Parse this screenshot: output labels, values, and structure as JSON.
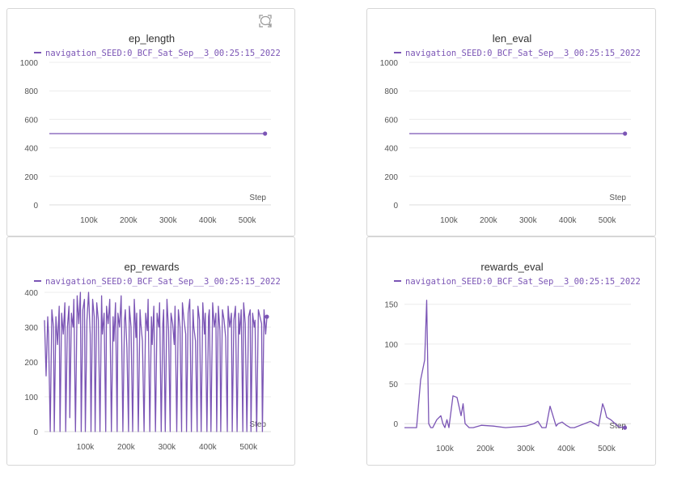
{
  "colors": {
    "series": "#7b55b5",
    "grid": "#ececec",
    "tick_text": "#555555",
    "title_text": "#333333",
    "axis": "#dddddd"
  },
  "panel_tools": [
    "fullscreen-icon",
    "comment-icon"
  ],
  "chart_data": [
    {
      "type": "line",
      "title": "ep_length",
      "legend": "navigation_SEED:0_BCF_Sat_Sep__3_00:25:15_2022",
      "xlabel": "Step",
      "ylabel": "",
      "xlim": [
        0,
        560000
      ],
      "ylim": [
        0,
        1000
      ],
      "xticks": [
        100000,
        200000,
        300000,
        400000,
        500000
      ],
      "xtick_labels": [
        "100k",
        "200k",
        "300k",
        "400k",
        "500k"
      ],
      "yticks": [
        0,
        200,
        400,
        600,
        800,
        1000
      ],
      "ytick_labels": [
        "0",
        "200",
        "400",
        "600",
        "800",
        "1000"
      ],
      "series": [
        {
          "name": "navigation_SEED:0_BCF_Sat_Sep__3_00:25:15_2022",
          "x": [
            0,
            545000
          ],
          "y": [
            500,
            500
          ],
          "end_marker": true
        }
      ]
    },
    {
      "type": "line",
      "title": "len_eval",
      "legend": "navigation_SEED:0_BCF_Sat_Sep__3_00:25:15_2022",
      "xlabel": "Step",
      "ylabel": "",
      "xlim": [
        0,
        560000
      ],
      "ylim": [
        0,
        1000
      ],
      "xticks": [
        100000,
        200000,
        300000,
        400000,
        500000
      ],
      "xtick_labels": [
        "100k",
        "200k",
        "300k",
        "400k",
        "500k"
      ],
      "yticks": [
        0,
        200,
        400,
        600,
        800,
        1000
      ],
      "ytick_labels": [
        "0",
        "200",
        "400",
        "600",
        "800",
        "1000"
      ],
      "series": [
        {
          "name": "navigation_SEED:0_BCF_Sat_Sep__3_00:25:15_2022",
          "x": [
            0,
            545000
          ],
          "y": [
            500,
            500
          ],
          "end_marker": true
        }
      ]
    },
    {
      "type": "line",
      "title": "ep_rewards",
      "legend": "navigation_SEED:0_BCF_Sat_Sep__3_00:25:15_2022",
      "xlabel": "Step",
      "ylabel": "",
      "xlim": [
        0,
        555000
      ],
      "ylim": [
        0,
        400
      ],
      "xticks": [
        100000,
        200000,
        300000,
        400000,
        500000
      ],
      "xtick_labels": [
        "100k",
        "200k",
        "300k",
        "400k",
        "500k"
      ],
      "yticks": [
        0,
        100,
        200,
        300,
        400
      ],
      "ytick_labels": [
        "0",
        "100",
        "200",
        "300",
        "400"
      ],
      "series": [
        {
          "name": "navigation_SEED:0_BCF_Sat_Sep__3_00:25:15_2022",
          "x": [
            0,
            4000,
            8000,
            10000,
            14000,
            18000,
            22000,
            24000,
            28000,
            32000,
            36000,
            38000,
            42000,
            46000,
            50000,
            52000,
            56000,
            60000,
            62000,
            66000,
            70000,
            72000,
            76000,
            80000,
            84000,
            88000,
            90000,
            94000,
            98000,
            100000,
            104000,
            108000,
            112000,
            114000,
            118000,
            122000,
            124000,
            128000,
            132000,
            136000,
            140000,
            142000,
            146000,
            150000,
            152000,
            156000,
            160000,
            164000,
            168000,
            170000,
            174000,
            178000,
            180000,
            184000,
            188000,
            192000,
            196000,
            198000,
            202000,
            206000,
            208000,
            212000,
            216000,
            220000,
            224000,
            226000,
            230000,
            234000,
            236000,
            240000,
            244000,
            248000,
            252000,
            254000,
            258000,
            262000,
            264000,
            268000,
            272000,
            276000,
            280000,
            282000,
            286000,
            290000,
            292000,
            296000,
            300000,
            304000,
            308000,
            310000,
            314000,
            318000,
            320000,
            324000,
            328000,
            332000,
            336000,
            338000,
            342000,
            346000,
            348000,
            352000,
            356000,
            360000,
            364000,
            366000,
            370000,
            374000,
            376000,
            380000,
            384000,
            388000,
            392000,
            394000,
            398000,
            402000,
            404000,
            408000,
            412000,
            416000,
            420000,
            422000,
            426000,
            430000,
            432000,
            436000,
            440000,
            444000,
            448000,
            450000,
            454000,
            458000,
            460000,
            464000,
            468000,
            472000,
            476000,
            478000,
            482000,
            486000,
            488000,
            492000,
            496000,
            500000,
            504000,
            506000,
            510000,
            514000,
            516000,
            520000,
            524000,
            528000,
            532000,
            534000,
            538000,
            542000,
            545000
          ],
          "y": [
            320,
            160,
            330,
            280,
            0,
            350,
            300,
            0,
            330,
            250,
            360,
            0,
            340,
            280,
            370,
            0,
            300,
            360,
            40,
            340,
            300,
            380,
            0,
            390,
            310,
            400,
            0,
            350,
            380,
            0,
            320,
            400,
            280,
            0,
            380,
            330,
            0,
            370,
            320,
            0,
            390,
            280,
            340,
            0,
            360,
            310,
            380,
            0,
            330,
            260,
            370,
            0,
            340,
            300,
            390,
            0,
            320,
            350,
            240,
            0,
            360,
            300,
            0,
            380,
            270,
            340,
            0,
            350,
            310,
            260,
            0,
            340,
            290,
            380,
            0,
            330,
            250,
            360,
            0,
            340,
            300,
            370,
            0,
            310,
            350,
            0,
            380,
            290,
            0,
            340,
            310,
            250,
            360,
            0,
            350,
            300,
            0,
            370,
            320,
            280,
            0,
            340,
            380,
            0,
            350,
            300,
            260,
            0,
            360,
            320,
            0,
            370,
            280,
            340,
            0,
            330,
            350,
            0,
            370,
            300,
            340,
            0,
            360,
            290,
            0,
            350,
            320,
            270,
            0,
            360,
            300,
            340,
            0,
            320,
            360,
            0,
            340,
            280,
            350,
            0,
            370,
            310,
            0,
            330,
            350,
            0,
            340,
            300,
            320,
            0,
            350,
            330,
            310,
            0,
            350,
            280,
            330
          ],
          "end_marker": true
        }
      ]
    },
    {
      "type": "line",
      "title": "rewards_eval",
      "legend": "navigation_SEED:0_BCF_Sat_Sep__3_00:25:15_2022",
      "xlabel": "Step",
      "ylabel": "",
      "xlim": [
        0,
        560000
      ],
      "ylim": [
        -12,
        165
      ],
      "xticks": [
        100000,
        200000,
        300000,
        400000,
        500000
      ],
      "xtick_labels": [
        "100k",
        "200k",
        "300k",
        "400k",
        "500k"
      ],
      "yticks": [
        0,
        50,
        100,
        150
      ],
      "ytick_labels": [
        "0",
        "50",
        "100",
        "150"
      ],
      "series": [
        {
          "name": "navigation_SEED:0_BCF_Sat_Sep__3_00:25:15_2022",
          "x": [
            0,
            15000,
            30000,
            40000,
            50000,
            55000,
            60000,
            65000,
            70000,
            80000,
            90000,
            95000,
            100000,
            105000,
            110000,
            120000,
            130000,
            140000,
            145000,
            150000,
            160000,
            170000,
            190000,
            220000,
            250000,
            300000,
            320000,
            330000,
            340000,
            350000,
            360000,
            375000,
            380000,
            390000,
            400000,
            410000,
            420000,
            460000,
            470000,
            480000,
            490000,
            495000,
            500000,
            510000,
            530000,
            545000
          ],
          "y": [
            -5,
            -5,
            -5,
            55,
            80,
            155,
            0,
            -5,
            -5,
            5,
            10,
            0,
            -5,
            5,
            -5,
            35,
            33,
            10,
            25,
            0,
            -5,
            -5,
            -2,
            -3,
            -5,
            -3,
            0,
            3,
            -5,
            -5,
            22,
            -3,
            0,
            2,
            -2,
            -5,
            -5,
            3,
            0,
            -3,
            25,
            18,
            8,
            5,
            -4,
            -5
          ],
          "end_marker": true
        }
      ]
    }
  ]
}
